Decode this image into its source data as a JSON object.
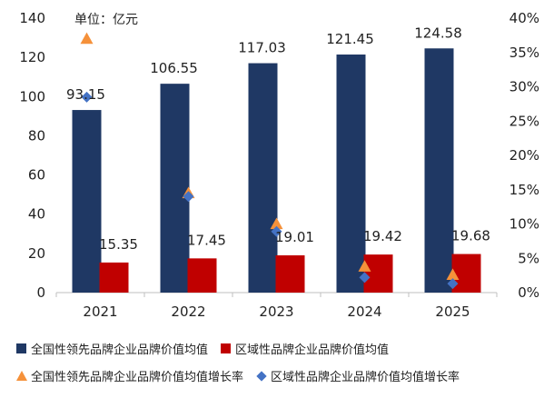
{
  "chart_data": {
    "type": "bar",
    "unit_label": "单位：亿元",
    "categories": [
      "2021",
      "2022",
      "2023",
      "2024",
      "2025"
    ],
    "series": [
      {
        "name": "全国性领先品牌企业品牌价值均值",
        "type": "bar",
        "axis": "left",
        "color": "#1F3864",
        "values": [
          93.15,
          106.55,
          117.03,
          121.45,
          124.58
        ]
      },
      {
        "name": "区域性品牌企业品牌价值均值",
        "type": "bar",
        "axis": "left",
        "color": "#C00000",
        "values": [
          15.35,
          17.45,
          19.01,
          19.42,
          19.68
        ]
      },
      {
        "name": "全国性领先品牌企业品牌价值均值增长率",
        "type": "scatter",
        "marker": "triangle",
        "axis": "right",
        "color": "#F5913A",
        "values": [
          0.37,
          0.145,
          0.1,
          0.038,
          0.026
        ]
      },
      {
        "name": "区域性品牌企业品牌价值均值增长率",
        "type": "scatter",
        "marker": "diamond",
        "axis": "right",
        "color": "#4472C4",
        "values": [
          0.285,
          0.14,
          0.089,
          0.022,
          0.013
        ]
      }
    ],
    "data_labels": {
      "s0": [
        "93.15",
        "106.55",
        "117.03",
        "121.45",
        "124.58"
      ],
      "s1": [
        "15.35",
        "17.45",
        "19.01",
        "19.42",
        "19.68"
      ]
    },
    "ylim_left": [
      0,
      140
    ],
    "yticks_left": [
      "0",
      "20",
      "40",
      "60",
      "80",
      "100",
      "120",
      "140"
    ],
    "ylim_right": [
      0,
      0.4
    ],
    "yticks_right": [
      "0%",
      "5%",
      "10%",
      "15%",
      "20%",
      "25%",
      "30%",
      "35%",
      "40%"
    ],
    "grid": false,
    "legend_position": "bottom"
  }
}
